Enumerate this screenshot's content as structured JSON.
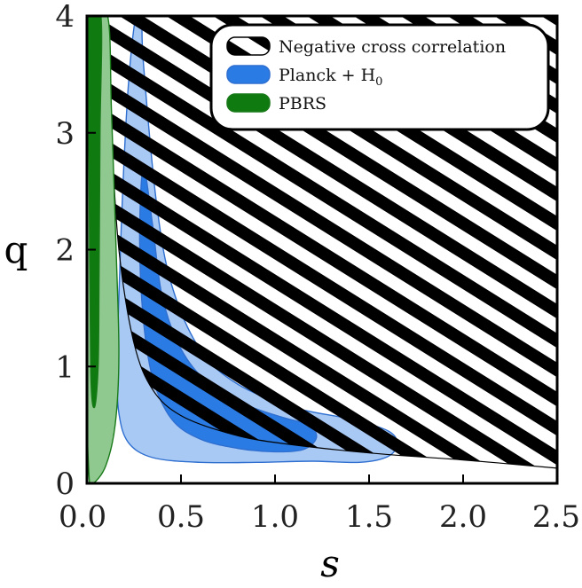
{
  "chart_data": {
    "type": "area",
    "xlabel": "s",
    "ylabel": "q",
    "xlim": [
      0,
      2.5
    ],
    "ylim": [
      0,
      4
    ],
    "x_ticks": [
      "0.0",
      "0.5",
      "1.0",
      "1.5",
      "2.0",
      "2.5"
    ],
    "y_ticks": [
      "0",
      "1",
      "2",
      "3",
      "4"
    ],
    "x_tick_values": [
      0,
      0.5,
      1.0,
      1.5,
      2.0,
      2.5
    ],
    "y_tick_values": [
      0,
      1,
      2,
      3,
      4
    ],
    "legend": {
      "placement": "top-right"
    },
    "colors": {
      "negative": "#000000",
      "planck_outer": "#a9c9f5",
      "planck_inner": "#2b7be4",
      "planck_edge": "#2f6fd0",
      "pbrs_outer": "#8fc98f",
      "pbrs_inner": "#0f7a0f",
      "pbrs_edge": "#1a7a1a"
    },
    "series": [
      {
        "name": "Negative cross correlation",
        "style": "hatched",
        "boundary": [
          [
            0.1,
            4
          ],
          [
            0.13,
            3
          ],
          [
            0.17,
            2
          ],
          [
            0.25,
            1.2
          ],
          [
            0.35,
            0.8
          ],
          [
            0.5,
            0.58
          ],
          [
            0.75,
            0.43
          ],
          [
            1.0,
            0.35
          ],
          [
            1.5,
            0.26
          ],
          [
            2.0,
            0.2
          ],
          [
            2.5,
            0.13
          ]
        ]
      },
      {
        "name": "Planck + H",
        "name_sub": "0",
        "style": "filled",
        "outer": [
          [
            0.29,
            4
          ],
          [
            0.26,
            4
          ],
          [
            0.22,
            3.4
          ],
          [
            0.19,
            2.5
          ],
          [
            0.17,
            1.6
          ],
          [
            0.16,
            1.0
          ],
          [
            0.17,
            0.6
          ],
          [
            0.22,
            0.35
          ],
          [
            0.35,
            0.22
          ],
          [
            0.6,
            0.18
          ],
          [
            0.9,
            0.18
          ],
          [
            1.2,
            0.19
          ],
          [
            1.45,
            0.18
          ],
          [
            1.6,
            0.23
          ],
          [
            1.65,
            0.34
          ],
          [
            1.6,
            0.45
          ],
          [
            1.4,
            0.55
          ],
          [
            1.1,
            0.65
          ],
          [
            0.8,
            0.85
          ],
          [
            0.6,
            1.15
          ],
          [
            0.45,
            1.7
          ],
          [
            0.37,
            2.4
          ],
          [
            0.3,
            3.6
          ]
        ],
        "inner": [
          [
            0.3,
            2.7
          ],
          [
            0.28,
            2.1
          ],
          [
            0.3,
            1.4
          ],
          [
            0.35,
            0.9
          ],
          [
            0.45,
            0.55
          ],
          [
            0.6,
            0.38
          ],
          [
            0.8,
            0.3
          ],
          [
            1.0,
            0.27
          ],
          [
            1.15,
            0.29
          ],
          [
            1.22,
            0.39
          ],
          [
            1.18,
            0.5
          ],
          [
            1.05,
            0.56
          ],
          [
            0.85,
            0.67
          ],
          [
            0.65,
            0.85
          ],
          [
            0.5,
            1.15
          ],
          [
            0.4,
            1.6
          ],
          [
            0.35,
            2.2
          ]
        ]
      },
      {
        "name": "PBRS",
        "style": "filled",
        "outer": [
          [
            0.015,
            4
          ],
          [
            0.11,
            4
          ],
          [
            0.13,
            3.2
          ],
          [
            0.155,
            2.0
          ],
          [
            0.17,
            1.1
          ],
          [
            0.15,
            0.5
          ],
          [
            0.1,
            0.15
          ],
          [
            0.03,
            0
          ],
          [
            0.01,
            0.1
          ],
          [
            0.0,
            1.0
          ]
        ],
        "inner": [
          [
            0.01,
            4
          ],
          [
            0.075,
            4
          ],
          [
            0.07,
            3.0
          ],
          [
            0.065,
            1.8
          ],
          [
            0.06,
            1.0
          ],
          [
            0.04,
            0.65
          ],
          [
            0.02,
            0.95
          ],
          [
            0.012,
            2.5
          ]
        ]
      }
    ]
  }
}
